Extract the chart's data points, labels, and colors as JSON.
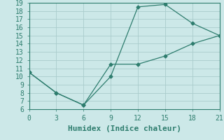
{
  "xlabel": "Humidex (Indice chaleur)",
  "xlim": [
    0,
    21
  ],
  "ylim": [
    6,
    19
  ],
  "xticks": [
    0,
    3,
    6,
    9,
    12,
    15,
    18,
    21
  ],
  "yticks": [
    6,
    7,
    8,
    9,
    10,
    11,
    12,
    13,
    14,
    15,
    16,
    17,
    18,
    19
  ],
  "upper_x": [
    0,
    3,
    6,
    9,
    12,
    15,
    18,
    21
  ],
  "upper_y": [
    10.5,
    8.0,
    6.5,
    10.0,
    18.5,
    18.8,
    16.5,
    15.0
  ],
  "lower_x": [
    0,
    3,
    6,
    9,
    12,
    15,
    18,
    21
  ],
  "lower_y": [
    10.5,
    8.0,
    6.5,
    11.5,
    11.5,
    12.5,
    14.0,
    15.0
  ],
  "line_color": "#2e7d6e",
  "marker": "D",
  "marker_size": 2.5,
  "lw": 0.9,
  "bg_color": "#cce8e8",
  "grid_color": "#aacccc",
  "font_family": "monospace",
  "xlabel_fontsize": 8,
  "tick_fontsize": 7
}
